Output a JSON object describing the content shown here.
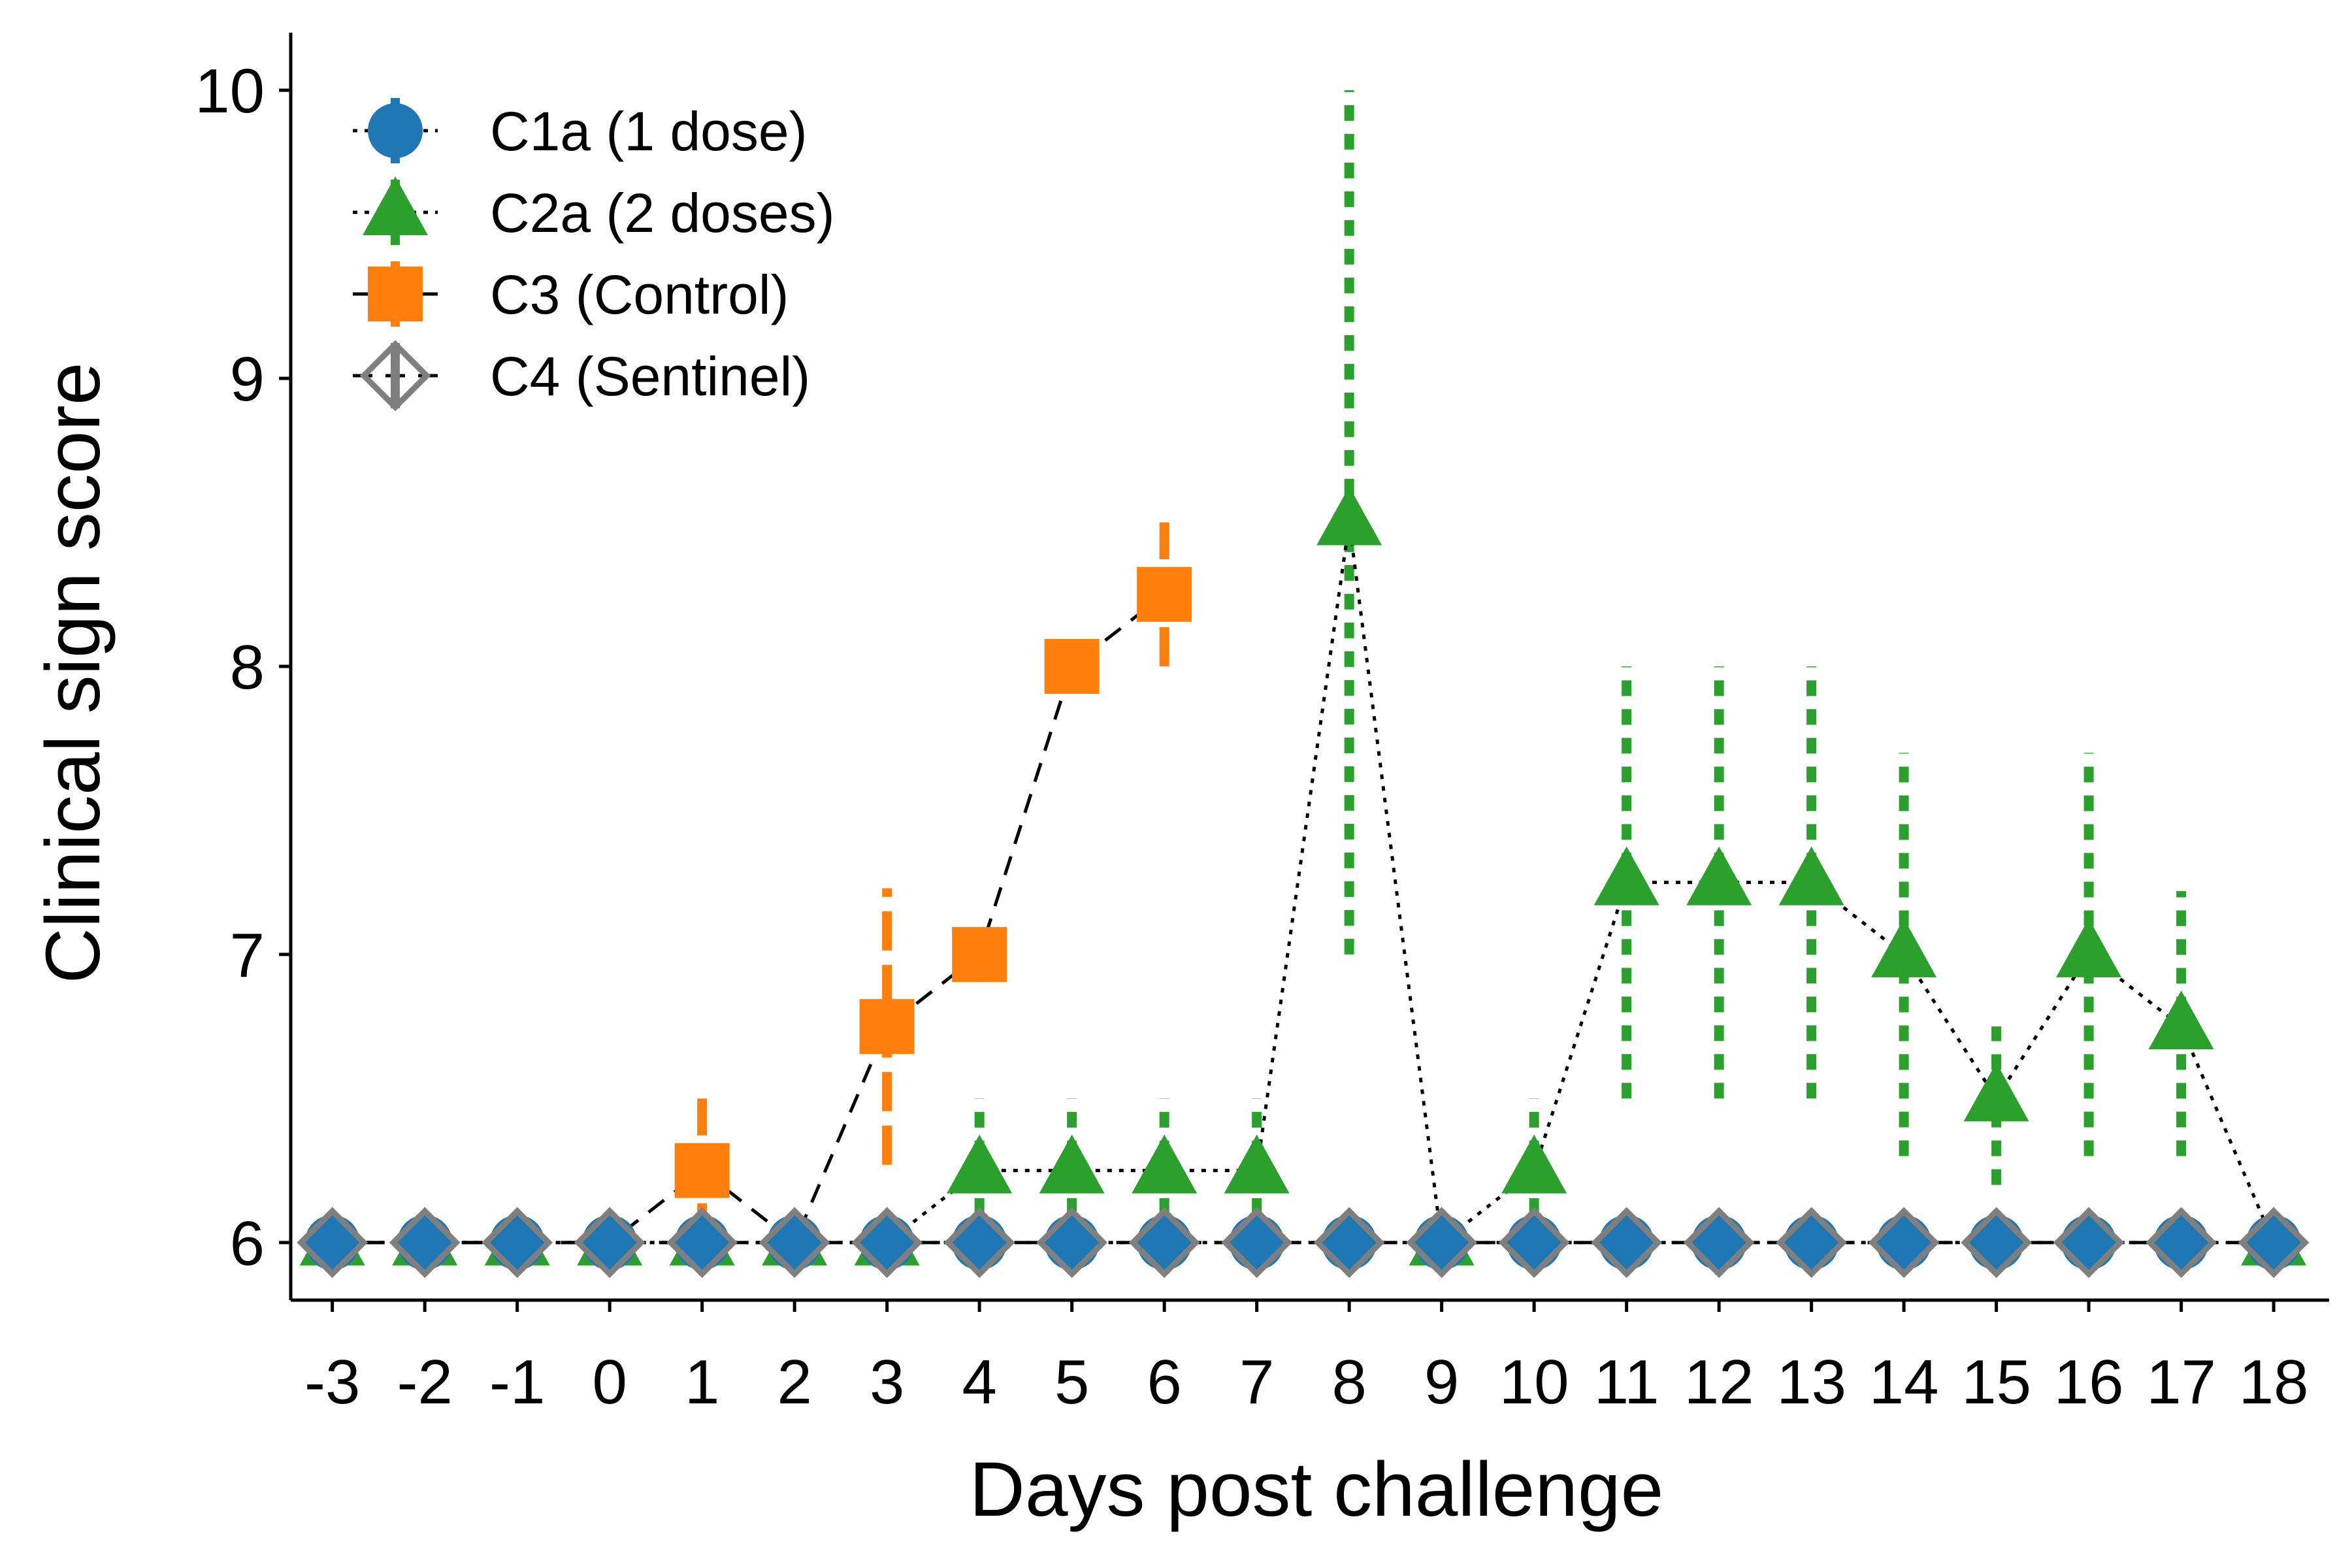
{
  "chart_data": {
    "type": "line",
    "xlabel": "Days post challenge",
    "ylabel": "Clinical sign score",
    "x": [
      -3,
      -2,
      -1,
      0,
      1,
      2,
      3,
      4,
      5,
      6,
      7,
      8,
      9,
      10,
      11,
      12,
      13,
      14,
      15,
      16,
      17,
      18
    ],
    "xlim": [
      -3.45,
      18.6
    ],
    "ylim": [
      5.8,
      10.2
    ],
    "yticks": [
      6,
      7,
      8,
      9,
      10
    ],
    "grid": false,
    "legend_position": "top-left",
    "series": [
      {
        "name": "C1a (1 dose)",
        "color": "#1f77b4",
        "marker": "circle",
        "line_style": "dotted",
        "x": [
          -3,
          -2,
          -1,
          0,
          1,
          2,
          3,
          4,
          5,
          6,
          7,
          8,
          9,
          10,
          11,
          12,
          13,
          14,
          15,
          16,
          17,
          18
        ],
        "y": [
          6,
          6,
          6,
          6,
          6,
          6,
          6,
          6,
          6,
          6,
          6,
          6,
          6,
          6,
          6,
          6,
          6,
          6,
          6,
          6,
          6,
          6
        ]
      },
      {
        "name": "C2a (2 doses)",
        "color": "#2ca02c",
        "marker": "triangle",
        "line_style": "dotted",
        "x": [
          -3,
          -2,
          -1,
          0,
          1,
          2,
          3,
          4,
          5,
          6,
          7,
          8,
          9,
          10,
          11,
          12,
          13,
          14,
          15,
          16,
          17,
          18
        ],
        "y": [
          6,
          6,
          6,
          6,
          6,
          6,
          6,
          6.25,
          6.25,
          6.25,
          6.25,
          8.5,
          6,
          6.25,
          7.25,
          7.25,
          7.25,
          7,
          6.5,
          7,
          6.75,
          6
        ],
        "error_low": [
          null,
          null,
          null,
          null,
          null,
          null,
          null,
          6,
          6,
          6,
          6,
          7,
          null,
          6,
          6.5,
          6.5,
          6.5,
          6.3,
          6.2,
          6.3,
          6.3,
          null
        ],
        "error_high": [
          null,
          null,
          null,
          null,
          null,
          null,
          null,
          6.5,
          6.5,
          6.5,
          6.5,
          10,
          null,
          6.5,
          8,
          8,
          8,
          7.7,
          6.75,
          7.7,
          7.22,
          null
        ]
      },
      {
        "name": "C3 (Control)",
        "color": "#ff7f0e",
        "marker": "square",
        "line_style": "dashed",
        "x": [
          -3,
          -2,
          -1,
          0,
          1,
          2,
          3,
          4,
          5,
          6
        ],
        "y": [
          6,
          6,
          6,
          6,
          6.25,
          6,
          6.75,
          7,
          8,
          8.25
        ],
        "error_low": [
          null,
          null,
          null,
          null,
          6,
          null,
          6.27,
          null,
          null,
          8
        ],
        "error_high": [
          null,
          null,
          null,
          null,
          6.5,
          null,
          7.23,
          null,
          null,
          8.5
        ]
      },
      {
        "name": "C4 (Sentinel)",
        "color": "#7f7f7f",
        "marker": "diamond-open",
        "line_style": "dashed",
        "x": [
          -3,
          -2,
          -1,
          0,
          1,
          2,
          3,
          4,
          5,
          6,
          7,
          8,
          9,
          10,
          11,
          12,
          13,
          14,
          15,
          16,
          17,
          18
        ],
        "y": [
          6,
          6,
          6,
          6,
          6,
          6,
          6,
          6,
          6,
          6,
          6,
          6,
          6,
          6,
          6,
          6,
          6,
          6,
          6,
          6,
          6,
          6
        ]
      }
    ]
  }
}
